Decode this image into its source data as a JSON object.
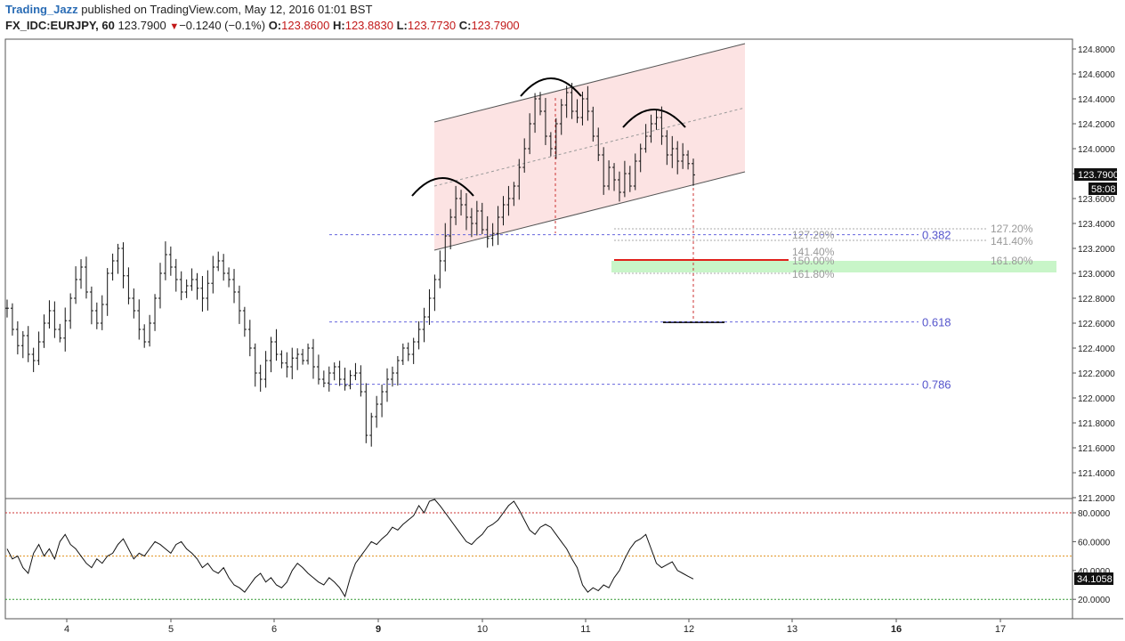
{
  "header": {
    "author": "Trading_Jazz",
    "published": "published on TradingView.com, May 12, 2016 01:01 BST",
    "symbol": "FX_IDC:EURJPY, 60",
    "last": "123.7900",
    "change": "−0.1240 (−0.1%)",
    "o_label": "O:",
    "o": "123.8600",
    "h_label": "H:",
    "h": "123.8830",
    "l_label": "L:",
    "l": "123.7730",
    "c_label": "C:",
    "c": "123.7900"
  },
  "colors": {
    "accent": "#2a6cb5",
    "down": "#c21919",
    "fib_line": "#6666dd",
    "channel_fill": "#fbd9d9",
    "target_zone": "#c8f5c8",
    "target_line": "#e0201b"
  },
  "chart_data": [
    {
      "type": "bar",
      "title": "FX_IDC:EURJPY, 60",
      "price_label": "123.7900",
      "countdown_label": "58:08",
      "ylim": [
        121.2,
        124.9
      ],
      "y_ticks": [
        "124.8000",
        "124.6000",
        "124.4000",
        "124.2000",
        "124.0000",
        "123.8000",
        "123.6000",
        "123.4000",
        "123.2000",
        "123.0000",
        "122.8000",
        "122.6000",
        "122.4000",
        "122.2000",
        "122.0000",
        "121.8000",
        "121.6000",
        "121.4000",
        "121.2000"
      ],
      "x_ticks": [
        "4",
        "5",
        "6",
        "9",
        "10",
        "11",
        "12",
        "13",
        "16",
        "17"
      ],
      "x_ticks_bold": [
        "9",
        "16"
      ],
      "fib_levels": [
        {
          "label": "0.382",
          "value": 123.31
        },
        {
          "label": "0.618",
          "value": 122.61
        },
        {
          "label": "0.786",
          "value": 122.11
        }
      ],
      "extension_labels_right": [
        "127.20%",
        "141.40%",
        "161.80%"
      ],
      "extension_labels_mid": [
        "127.20%",
        "141.40%",
        "150.00%",
        "161.80%"
      ],
      "pattern": "head-and-shoulders within rising channel",
      "ohlc_path": [
        122.72,
        122.55,
        122.42,
        122.5,
        122.35,
        122.3,
        122.45,
        122.6,
        122.7,
        122.55,
        122.48,
        122.62,
        122.8,
        122.95,
        123.05,
        122.85,
        122.7,
        122.6,
        122.75,
        123.0,
        123.1,
        123.2,
        122.98,
        122.8,
        122.7,
        122.55,
        122.45,
        122.6,
        122.8,
        123.0,
        123.15,
        123.05,
        122.95,
        122.85,
        122.9,
        122.95,
        122.88,
        122.8,
        122.92,
        123.05,
        123.1,
        123.0,
        122.95,
        122.85,
        122.7,
        122.55,
        122.4,
        122.2,
        122.15,
        122.3,
        122.45,
        122.35,
        122.28,
        122.25,
        122.32,
        122.35,
        122.3,
        122.4,
        122.25,
        122.15,
        122.12,
        122.2,
        122.25,
        122.15,
        122.1,
        122.18,
        122.2,
        122.05,
        121.7,
        121.85,
        121.95,
        122.05,
        122.15,
        122.2,
        122.3,
        122.4,
        122.35,
        122.45,
        122.55,
        122.65,
        122.8,
        122.95,
        123.1,
        123.3,
        123.45,
        123.6,
        123.55,
        123.45,
        123.4,
        123.5,
        123.35,
        123.28,
        123.32,
        123.45,
        123.55,
        123.6,
        123.7,
        123.85,
        124.0,
        124.2,
        124.4,
        124.3,
        124.1,
        124.0,
        124.2,
        124.35,
        124.45,
        124.3,
        124.25,
        124.4,
        124.3,
        124.1,
        123.95,
        123.7,
        123.85,
        123.75,
        123.65,
        123.8,
        123.7,
        123.9,
        124.0,
        124.1,
        124.2,
        124.25,
        124.1,
        123.95,
        124.0,
        123.9,
        123.95,
        123.88,
        123.79
      ],
      "rsi": {
        "label": "34.1058",
        "ylim": [
          10,
          100
        ],
        "y_ticks": [
          "80.0000",
          "60.0000",
          "40.0000",
          "20.0000"
        ],
        "levels": [
          80,
          50,
          20
        ],
        "last": 34.1058,
        "values": [
          55,
          48,
          50,
          42,
          38,
          52,
          58,
          50,
          55,
          48,
          60,
          65,
          58,
          55,
          50,
          45,
          42,
          48,
          45,
          50,
          52,
          58,
          62,
          55,
          48,
          52,
          50,
          55,
          60,
          58,
          55,
          52,
          58,
          60,
          55,
          52,
          48,
          42,
          45,
          40,
          38,
          42,
          35,
          30,
          28,
          25,
          30,
          35,
          38,
          32,
          35,
          30,
          28,
          32,
          40,
          45,
          42,
          38,
          35,
          32,
          30,
          35,
          32,
          28,
          22,
          35,
          45,
          50,
          55,
          60,
          58,
          62,
          65,
          70,
          68,
          72,
          75,
          78,
          85,
          80,
          88,
          92,
          85,
          80,
          75,
          70,
          65,
          60,
          58,
          62,
          65,
          70,
          72,
          75,
          80,
          85,
          88,
          82,
          75,
          68,
          65,
          70,
          72,
          70,
          65,
          60,
          55,
          48,
          42,
          30,
          25,
          28,
          26,
          30,
          28,
          35,
          40,
          48,
          55,
          60,
          62,
          65,
          55,
          45,
          42,
          44,
          46,
          40,
          38,
          36,
          34.1058
        ]
      }
    }
  ]
}
